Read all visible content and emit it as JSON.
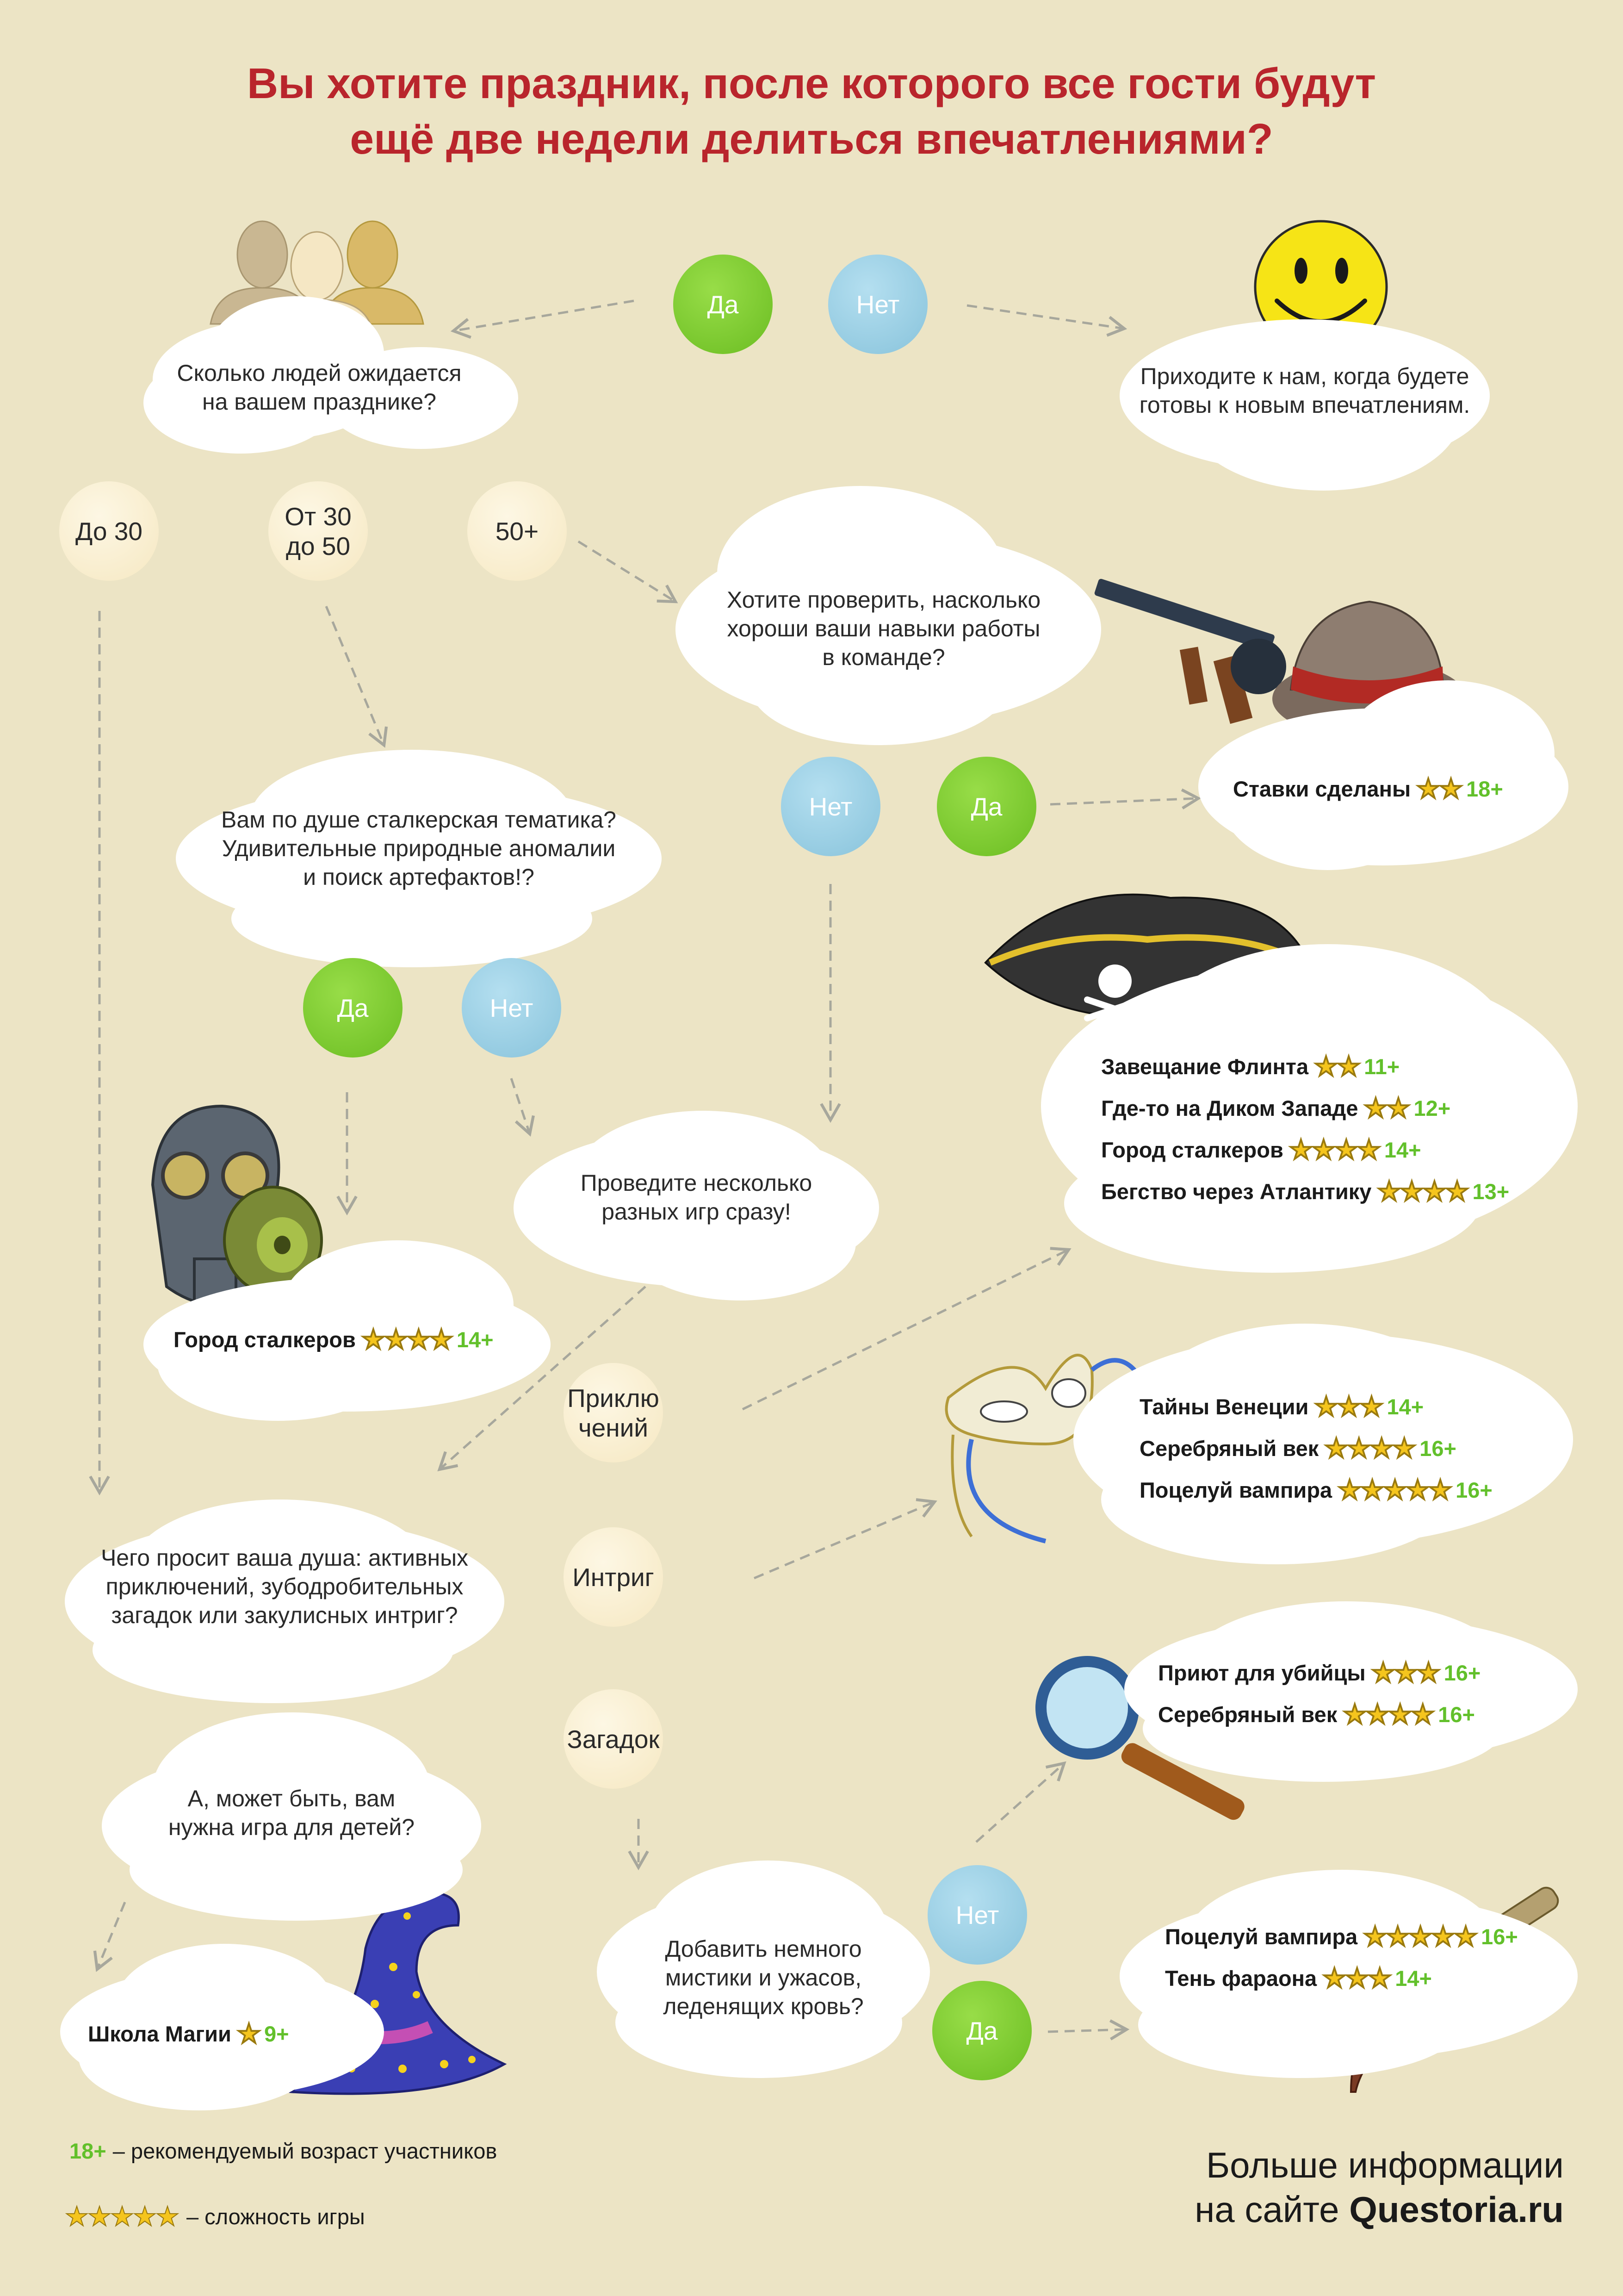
{
  "title": {
    "line1": "Вы хотите праздник, после которого все гости будут",
    "line2": "ещё две недели делиться впечатлениями?"
  },
  "answers": {
    "yes": "Да",
    "no": "Нет"
  },
  "q_people": {
    "line1": "Сколько людей ожидается",
    "line2": "на вашем празднике?"
  },
  "come_later": {
    "line1": "Приходите к нам, когда будете",
    "line2": "готовы к новым впечатлениям."
  },
  "people_options": {
    "under30": "До 30",
    "mid_line1": "От 30",
    "mid_line2": "до 50",
    "over50": "50+"
  },
  "q_team": {
    "line1": "Хотите проверить, насколько",
    "line2": "хороши ваши навыки работы",
    "line3": "в команде?"
  },
  "q_stalker": {
    "line1": "Вам по душе сталкерская тематика?",
    "line2": "Удивительные природные аномалии",
    "line3": "и поиск артефактов!?"
  },
  "q_many": {
    "line1": "Проведите несколько",
    "line2": "разных игр сразу!"
  },
  "q_soul": {
    "line1": "Чего просит ваша душа: активных",
    "line2": "приключений, зубодробительных",
    "line3": "загадок или закулисных интриг?"
  },
  "q_kids": {
    "line1": "А, может быть, вам",
    "line2": "нужна игра для детей?"
  },
  "q_horror": {
    "line1": "Добавить немного",
    "line2": "мистики и ужасов,",
    "line3": "леденящих кровь?"
  },
  "genres": {
    "adv_line1": "Приклю",
    "adv_line2": "чений",
    "intrigue": "Интриг",
    "riddles": "Загадок"
  },
  "games": {
    "bets": [
      {
        "name": "Ставки сделаны",
        "stars": "★★",
        "age": "18+"
      }
    ],
    "stalker": [
      {
        "name": "Город сталкеров",
        "stars": "★★★★",
        "age": "14+"
      }
    ],
    "big": [
      {
        "name": "Завещание Флинта",
        "stars": "★★",
        "age": "11+"
      },
      {
        "name": "Где-то на Диком Западе",
        "stars": "★★",
        "age": "12+"
      },
      {
        "name": "Город сталкеров",
        "stars": "★★★★",
        "age": "14+"
      },
      {
        "name": "Бегство через Атлантику",
        "stars": "★★★★",
        "age": "13+"
      }
    ],
    "intrigue": [
      {
        "name": "Тайны Венеции",
        "stars": "★★★",
        "age": "14+"
      },
      {
        "name": "Серебряный век",
        "stars": "★★★★",
        "age": "16+"
      },
      {
        "name": "Поцелуй вампира",
        "stars": "★★★★★",
        "age": "16+"
      }
    ],
    "riddles": [
      {
        "name": "Приют для убийцы",
        "stars": "★★★",
        "age": "16+"
      },
      {
        "name": "Серебряный век",
        "stars": "★★★★",
        "age": "16+"
      }
    ],
    "horror": [
      {
        "name": "Поцелуй вампира",
        "stars": "★★★★★",
        "age": "16+"
      },
      {
        "name": "Тень фараона",
        "stars": "★★★",
        "age": "14+"
      }
    ],
    "kids": [
      {
        "name": "Школа Магии",
        "stars": "★",
        "age": "9+"
      }
    ]
  },
  "legend": {
    "age_sample": "18+",
    "age_text": "– рекомендуемый возраст участников",
    "stars_sample": "★★★★★",
    "stars_text": "– сложность игры"
  },
  "footer": {
    "line1": "Больше информации",
    "line2_prefix": "на сайте ",
    "site": "Questoria.ru"
  },
  "colors": {
    "title": "#b9252c",
    "background": "#ece4c5",
    "yes": "#7ec63a",
    "no": "#9fd1e6",
    "age": "#62c02b",
    "star": "#f5c51d"
  },
  "icons": [
    "people-silhouettes-icon",
    "smiley-icon",
    "tommy-gun-icon",
    "fedora-hat-icon",
    "cigar-icon",
    "pirate-hat-icon",
    "gas-mask-icon",
    "venetian-mask-icon",
    "magnifying-glass-icon",
    "dagger-icon",
    "wizard-hat-icon"
  ]
}
